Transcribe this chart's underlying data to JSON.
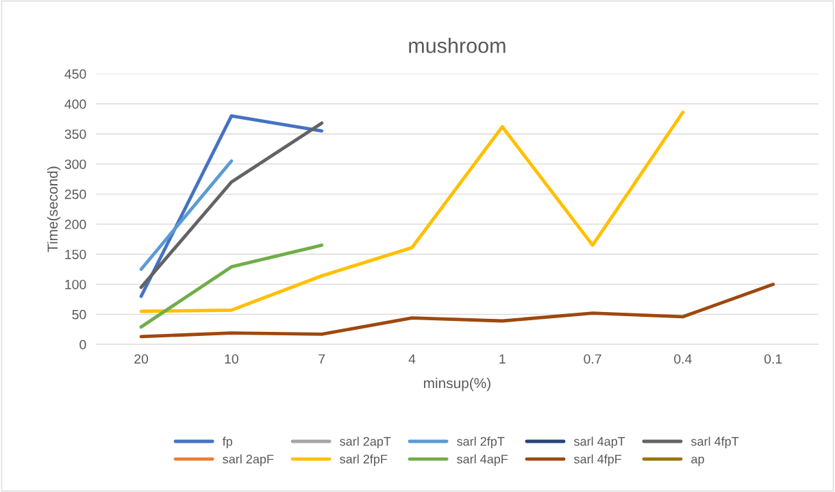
{
  "chart_data": {
    "type": "line",
    "title": "mushroom",
    "xlabel": "minsup(%)",
    "ylabel": "Time(second)",
    "categories": [
      "20",
      "10",
      "7",
      "4",
      "1",
      "0.7",
      "0.4",
      "0.1"
    ],
    "ylim": [
      0,
      450
    ],
    "yticks": [
      0,
      50,
      100,
      150,
      200,
      250,
      300,
      350,
      400,
      450
    ],
    "grid": "y",
    "legend": "bottom",
    "marker": "none",
    "line_style": "solid",
    "series": [
      {
        "name": "fp",
        "color": "#4472c4",
        "values": [
          80,
          380,
          355,
          null,
          null,
          null,
          null,
          null
        ]
      },
      {
        "name": "sarl 2apF",
        "color": "#ed7d31",
        "values": [
          null,
          null,
          null,
          null,
          null,
          null,
          null,
          null
        ]
      },
      {
        "name": "sarl 2apT",
        "color": "#a5a5a5",
        "values": [
          null,
          null,
          null,
          null,
          null,
          null,
          null,
          null
        ]
      },
      {
        "name": "sarl 2fpF",
        "color": "#ffc000",
        "values": [
          55,
          57,
          114,
          161,
          362,
          165,
          386,
          null
        ]
      },
      {
        "name": "sarl 2fpT",
        "color": "#5b9bd5",
        "values": [
          125,
          305,
          null,
          null,
          null,
          null,
          null,
          null
        ]
      },
      {
        "name": "sarl 4apF",
        "color": "#70ad47",
        "values": [
          29,
          129,
          165,
          null,
          null,
          null,
          null,
          null
        ]
      },
      {
        "name": "sarl 4apT",
        "color": "#264478",
        "values": [
          null,
          null,
          null,
          null,
          null,
          null,
          null,
          null
        ]
      },
      {
        "name": "sarl 4fpF",
        "color": "#9e480e",
        "values": [
          13,
          19,
          17,
          44,
          39,
          52,
          46,
          100
        ]
      },
      {
        "name": "sarl 4fpT",
        "color": "#636363",
        "values": [
          95,
          270,
          368,
          null,
          null,
          null,
          null,
          null
        ]
      },
      {
        "name": "ap",
        "color": "#997300",
        "values": [
          null,
          null,
          null,
          null,
          null,
          null,
          null,
          null
        ]
      }
    ]
  }
}
